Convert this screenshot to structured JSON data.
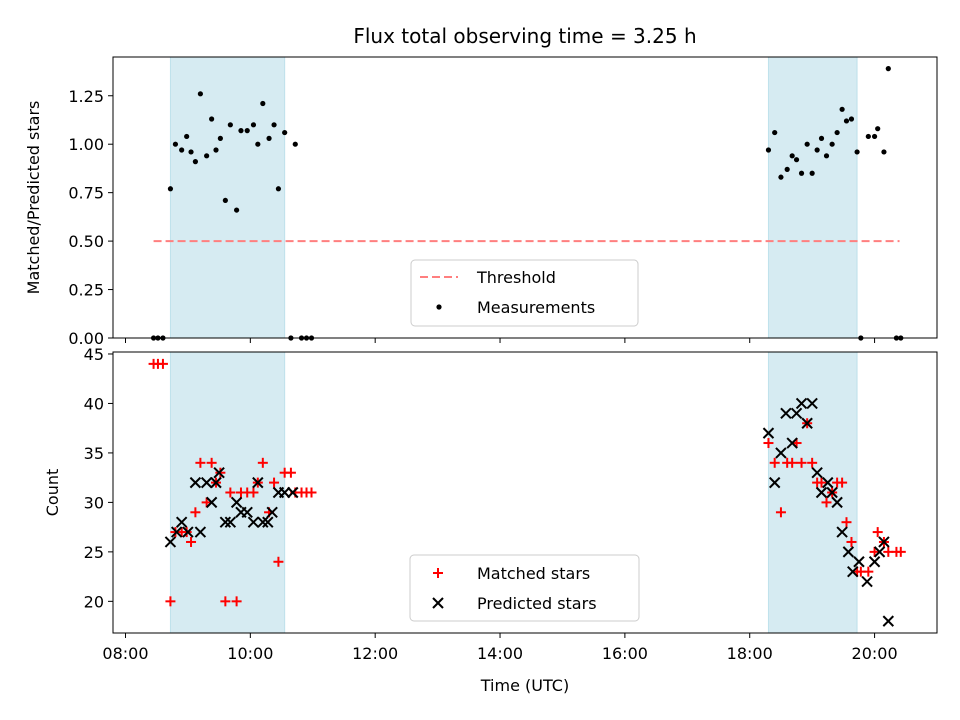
{
  "chart_data": [
    {
      "type": "scatter",
      "title": "Flux total observing time = 3.25 h",
      "xlabel": "",
      "ylabel": "Matched/Predicted stars",
      "xlim_hours": [
        7.8,
        21.0
      ],
      "ylim": [
        0,
        1.45
      ],
      "yticks": [
        0.0,
        0.25,
        0.5,
        0.75,
        1.0,
        1.25
      ],
      "ytick_labels": [
        "0.00",
        "0.25",
        "0.50",
        "0.75",
        "1.00",
        "1.25"
      ],
      "shaded_intervals_hours": [
        [
          8.72,
          10.55
        ],
        [
          18.3,
          19.72
        ]
      ],
      "threshold": {
        "name": "Threshold",
        "value": 0.5,
        "x_range_hours": [
          8.45,
          20.4
        ],
        "color": "#ff7f7f"
      },
      "measurements": {
        "name": "Measurements",
        "color": "#000000",
        "points": [
          [
            8.45,
            0.0
          ],
          [
            8.52,
            0.0
          ],
          [
            8.6,
            0.0
          ],
          [
            8.72,
            0.77
          ],
          [
            8.8,
            1.0
          ],
          [
            8.9,
            0.97
          ],
          [
            8.98,
            1.04
          ],
          [
            9.05,
            0.96
          ],
          [
            9.12,
            0.91
          ],
          [
            9.2,
            1.26
          ],
          [
            9.3,
            0.94
          ],
          [
            9.38,
            1.13
          ],
          [
            9.45,
            0.97
          ],
          [
            9.52,
            1.03
          ],
          [
            9.6,
            0.71
          ],
          [
            9.68,
            1.1
          ],
          [
            9.78,
            0.66
          ],
          [
            9.85,
            1.07
          ],
          [
            9.95,
            1.07
          ],
          [
            10.05,
            1.1
          ],
          [
            10.12,
            1.0
          ],
          [
            10.2,
            1.21
          ],
          [
            10.3,
            1.03
          ],
          [
            10.38,
            1.1
          ],
          [
            10.45,
            0.77
          ],
          [
            10.55,
            1.06
          ],
          [
            10.65,
            0.0
          ],
          [
            10.72,
            1.0
          ],
          [
            10.82,
            0.0
          ],
          [
            10.9,
            0.0
          ],
          [
            10.98,
            0.0
          ],
          [
            18.3,
            0.97
          ],
          [
            18.4,
            1.06
          ],
          [
            18.5,
            0.83
          ],
          [
            18.6,
            0.87
          ],
          [
            18.68,
            0.94
          ],
          [
            18.75,
            0.92
          ],
          [
            18.83,
            0.85
          ],
          [
            18.92,
            1.0
          ],
          [
            19.0,
            0.85
          ],
          [
            19.08,
            0.97
          ],
          [
            19.15,
            1.03
          ],
          [
            19.23,
            0.94
          ],
          [
            19.32,
            1.0
          ],
          [
            19.4,
            1.06
          ],
          [
            19.48,
            1.18
          ],
          [
            19.55,
            1.12
          ],
          [
            19.63,
            1.13
          ],
          [
            19.72,
            0.96
          ],
          [
            19.78,
            0.0
          ],
          [
            19.9,
            1.04
          ],
          [
            20.0,
            1.04
          ],
          [
            20.05,
            1.08
          ],
          [
            20.15,
            0.96
          ],
          [
            20.22,
            1.39
          ],
          [
            20.35,
            0.0
          ],
          [
            20.42,
            0.0
          ]
        ]
      },
      "legend": {
        "placement": "lower-center",
        "entries": [
          "Threshold",
          "Measurements"
        ]
      }
    },
    {
      "type": "scatter",
      "title": "",
      "xlabel": "Time (UTC)",
      "ylabel": "Count",
      "xlim_hours": [
        7.8,
        21.0
      ],
      "ylim": [
        16.8,
        45.2
      ],
      "yticks": [
        20,
        25,
        30,
        35,
        40,
        45
      ],
      "ytick_labels": [
        "20",
        "25",
        "30",
        "35",
        "40",
        "45"
      ],
      "xticks_hours": [
        8,
        10,
        12,
        14,
        16,
        18,
        20
      ],
      "xtick_labels": [
        "08:00",
        "10:00",
        "12:00",
        "14:00",
        "16:00",
        "18:00",
        "20:00"
      ],
      "shaded_intervals_hours": [
        [
          8.72,
          10.55
        ],
        [
          18.3,
          19.72
        ]
      ],
      "series": [
        {
          "name": "Matched stars",
          "marker": "plus",
          "color": "#ff0000",
          "points": [
            [
              8.45,
              44
            ],
            [
              8.52,
              44
            ],
            [
              8.6,
              44
            ],
            [
              8.72,
              20
            ],
            [
              8.8,
              27
            ],
            [
              8.9,
              27
            ],
            [
              8.98,
              27
            ],
            [
              9.05,
              26
            ],
            [
              9.12,
              29
            ],
            [
              9.2,
              34
            ],
            [
              9.3,
              30
            ],
            [
              9.38,
              34
            ],
            [
              9.45,
              32
            ],
            [
              9.52,
              33
            ],
            [
              9.6,
              20
            ],
            [
              9.68,
              31
            ],
            [
              9.78,
              20
            ],
            [
              9.85,
              31
            ],
            [
              9.95,
              31
            ],
            [
              10.05,
              31
            ],
            [
              10.12,
              32
            ],
            [
              10.2,
              34
            ],
            [
              10.3,
              29
            ],
            [
              10.38,
              32
            ],
            [
              10.45,
              24
            ],
            [
              10.55,
              33
            ],
            [
              10.65,
              33
            ],
            [
              10.72,
              31
            ],
            [
              10.82,
              31
            ],
            [
              10.9,
              31
            ],
            [
              10.98,
              31
            ],
            [
              18.3,
              36
            ],
            [
              18.4,
              34
            ],
            [
              18.5,
              29
            ],
            [
              18.6,
              34
            ],
            [
              18.68,
              34
            ],
            [
              18.75,
              36
            ],
            [
              18.83,
              34
            ],
            [
              18.92,
              38
            ],
            [
              19.0,
              34
            ],
            [
              19.08,
              32
            ],
            [
              19.15,
              32
            ],
            [
              19.23,
              30
            ],
            [
              19.32,
              31
            ],
            [
              19.4,
              32
            ],
            [
              19.48,
              32
            ],
            [
              19.55,
              28
            ],
            [
              19.63,
              26
            ],
            [
              19.72,
              23
            ],
            [
              19.78,
              23
            ],
            [
              19.9,
              23
            ],
            [
              20.0,
              25
            ],
            [
              20.05,
              27
            ],
            [
              20.15,
              26
            ],
            [
              20.22,
              25
            ],
            [
              20.35,
              25
            ],
            [
              20.42,
              25
            ]
          ]
        },
        {
          "name": "Predicted stars",
          "marker": "x",
          "color": "#000000",
          "points": [
            [
              8.72,
              26
            ],
            [
              8.82,
              27
            ],
            [
              8.9,
              28
            ],
            [
              9.0,
              27
            ],
            [
              9.12,
              32
            ],
            [
              9.2,
              27
            ],
            [
              9.3,
              32
            ],
            [
              9.38,
              30
            ],
            [
              9.45,
              32
            ],
            [
              9.5,
              33
            ],
            [
              9.6,
              28
            ],
            [
              9.68,
              28
            ],
            [
              9.78,
              30
            ],
            [
              9.85,
              29
            ],
            [
              9.95,
              29
            ],
            [
              10.05,
              28
            ],
            [
              10.12,
              32
            ],
            [
              10.2,
              28
            ],
            [
              10.28,
              28
            ],
            [
              10.35,
              29
            ],
            [
              10.45,
              31
            ],
            [
              10.55,
              31
            ],
            [
              10.68,
              31
            ],
            [
              18.3,
              37
            ],
            [
              18.4,
              32
            ],
            [
              18.5,
              35
            ],
            [
              18.58,
              39
            ],
            [
              18.68,
              36
            ],
            [
              18.75,
              39
            ],
            [
              18.83,
              40
            ],
            [
              18.92,
              38
            ],
            [
              19.0,
              40
            ],
            [
              19.08,
              33
            ],
            [
              19.15,
              31
            ],
            [
              19.25,
              32
            ],
            [
              19.32,
              31
            ],
            [
              19.4,
              30
            ],
            [
              19.48,
              27
            ],
            [
              19.58,
              25
            ],
            [
              19.65,
              23
            ],
            [
              19.75,
              24
            ],
            [
              19.88,
              22
            ],
            [
              20.0,
              24
            ],
            [
              20.08,
              25
            ],
            [
              20.15,
              26
            ],
            [
              20.22,
              18
            ]
          ]
        }
      ],
      "legend": {
        "placement": "lower-center",
        "entries": [
          "Matched stars",
          "Predicted stars"
        ]
      }
    }
  ]
}
